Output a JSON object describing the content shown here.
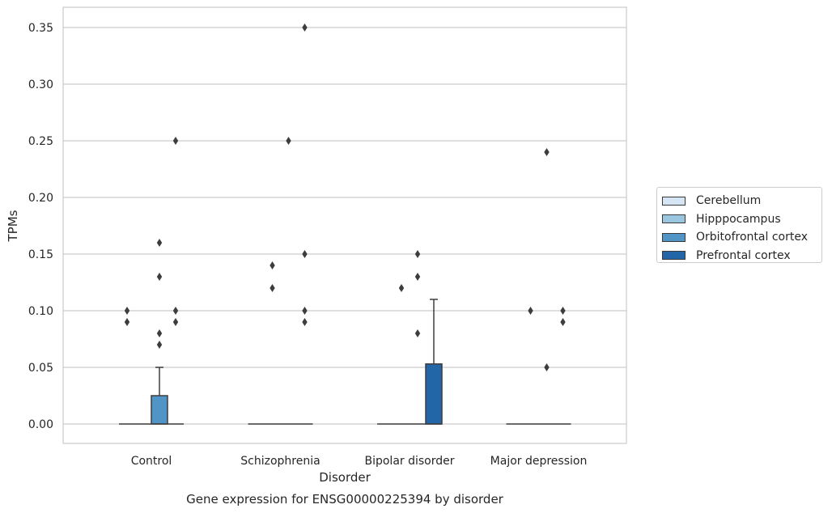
{
  "chart_data": {
    "type": "box",
    "title": "Gene expression for ENSG00000225394 by disorder",
    "xlabel": "Disorder",
    "ylabel": "TPMs",
    "ylim": [
      -0.017,
      0.367
    ],
    "yticks": [
      0.0,
      0.05,
      0.1,
      0.15,
      0.2,
      0.25,
      0.3,
      0.35
    ],
    "ytick_labels": [
      "0.00",
      "0.05",
      "0.10",
      "0.15",
      "0.20",
      "0.25",
      "0.30",
      "0.35"
    ],
    "grid": "horizontal",
    "legend_position": "right",
    "categories": [
      "Control",
      "Schizophrenia",
      "Bipolar disorder",
      "Major depression"
    ],
    "series": [
      {
        "name": "Cerebellum",
        "color": "#d6e5f3"
      },
      {
        "name": "Hipppocampus",
        "color": "#9bc6df"
      },
      {
        "name": "Orbitofrontal cortex",
        "color": "#5095c5"
      },
      {
        "name": "Prefrontal cortex",
        "color": "#2366a8"
      }
    ],
    "boxes": [
      {
        "category": "Control",
        "series": "Orbitofrontal cortex",
        "q1": 0.0,
        "median": 0.0,
        "q3": 0.025,
        "whisker_low": 0.0,
        "whisker_high": 0.05,
        "outliers": [
          0.16,
          0.13,
          0.08,
          0.07
        ]
      },
      {
        "category": "Control",
        "series": "Cerebellum",
        "q1": 0.0,
        "median": 0.0,
        "q3": 0.0,
        "whisker_low": 0.0,
        "whisker_high": 0.0,
        "outliers": [
          0.1,
          0.09
        ]
      },
      {
        "category": "Control",
        "series": "Hipppocampus",
        "q1": 0.0,
        "median": 0.0,
        "q3": 0.0,
        "whisker_low": 0.0,
        "whisker_high": 0.0,
        "outliers": []
      },
      {
        "category": "Control",
        "series": "Prefrontal cortex",
        "q1": 0.0,
        "median": 0.0,
        "q3": 0.0,
        "whisker_low": 0.0,
        "whisker_high": 0.0,
        "outliers": [
          0.25,
          0.1,
          0.09
        ]
      },
      {
        "category": "Schizophrenia",
        "series": "Cerebellum",
        "q1": 0.0,
        "median": 0.0,
        "q3": 0.0,
        "whisker_low": 0.0,
        "whisker_high": 0.0,
        "outliers": []
      },
      {
        "category": "Schizophrenia",
        "series": "Hipppocampus",
        "q1": 0.0,
        "median": 0.0,
        "q3": 0.0,
        "whisker_low": 0.0,
        "whisker_high": 0.0,
        "outliers": [
          0.14,
          0.12
        ]
      },
      {
        "category": "Schizophrenia",
        "series": "Orbitofrontal cortex",
        "q1": 0.0,
        "median": 0.0,
        "q3": 0.0,
        "whisker_low": 0.0,
        "whisker_high": 0.0,
        "outliers": [
          0.25
        ]
      },
      {
        "category": "Schizophrenia",
        "series": "Prefrontal cortex",
        "q1": 0.0,
        "median": 0.0,
        "q3": 0.0,
        "whisker_low": 0.0,
        "whisker_high": 0.0,
        "outliers": [
          0.35,
          0.15,
          0.09,
          0.1
        ]
      },
      {
        "category": "Bipolar disorder",
        "series": "Cerebellum",
        "q1": 0.0,
        "median": 0.0,
        "q3": 0.0,
        "whisker_low": 0.0,
        "whisker_high": 0.0,
        "outliers": []
      },
      {
        "category": "Bipolar disorder",
        "series": "Hipppocampus",
        "q1": 0.0,
        "median": 0.0,
        "q3": 0.0,
        "whisker_low": 0.0,
        "whisker_high": 0.0,
        "outliers": [
          0.12
        ]
      },
      {
        "category": "Bipolar disorder",
        "series": "Orbitofrontal cortex",
        "q1": 0.0,
        "median": 0.0,
        "q3": 0.0,
        "whisker_low": 0.0,
        "whisker_high": 0.0,
        "outliers": [
          0.15,
          0.13,
          0.08
        ]
      },
      {
        "category": "Bipolar disorder",
        "series": "Prefrontal cortex",
        "q1": 0.0,
        "median": 0.0,
        "q3": 0.053,
        "whisker_low": 0.0,
        "whisker_high": 0.11,
        "outliers": []
      },
      {
        "category": "Major depression",
        "series": "Cerebellum",
        "q1": 0.0,
        "median": 0.0,
        "q3": 0.0,
        "whisker_low": 0.0,
        "whisker_high": 0.0,
        "outliers": []
      },
      {
        "category": "Major depression",
        "series": "Hipppocampus",
        "q1": 0.0,
        "median": 0.0,
        "q3": 0.0,
        "whisker_low": 0.0,
        "whisker_high": 0.0,
        "outliers": [
          0.1
        ]
      },
      {
        "category": "Major depression",
        "series": "Orbitofrontal cortex",
        "q1": 0.0,
        "median": 0.0,
        "q3": 0.0,
        "whisker_low": 0.0,
        "whisker_high": 0.0,
        "outliers": [
          0.24,
          0.05
        ]
      },
      {
        "category": "Major depression",
        "series": "Prefrontal cortex",
        "q1": 0.0,
        "median": 0.0,
        "q3": 0.0,
        "whisker_low": 0.0,
        "whisker_high": 0.0,
        "outliers": [
          0.1,
          0.09
        ]
      }
    ]
  }
}
